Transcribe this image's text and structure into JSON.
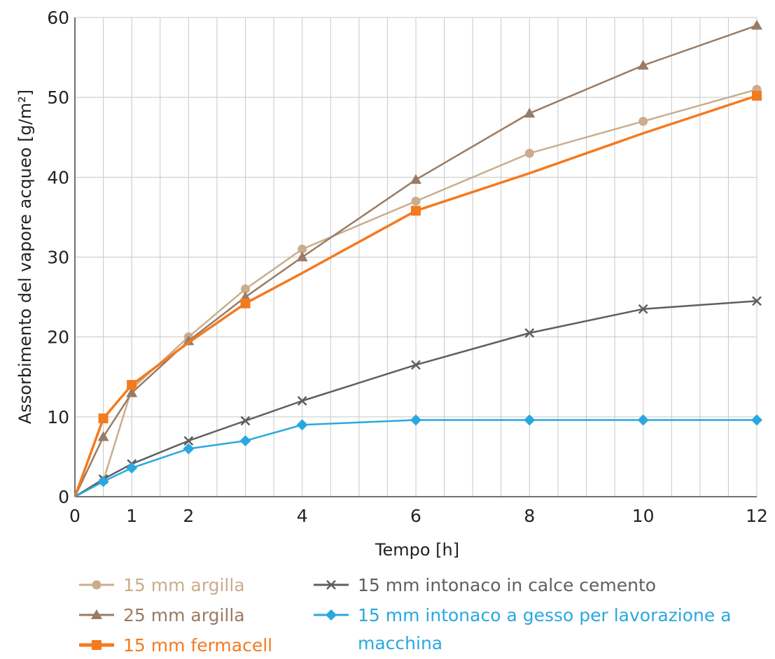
{
  "chart_data": {
    "type": "line",
    "title": "",
    "xlabel": "Tempo [h]",
    "ylabel": "Assorbimento del vapore acqueo [g/m²]",
    "xlim": [
      0,
      12
    ],
    "ylim": [
      0,
      60
    ],
    "xticks": [
      0,
      1,
      2,
      4,
      6,
      8,
      10,
      12
    ],
    "yticks": [
      0,
      10,
      20,
      30,
      40,
      50,
      60
    ],
    "grid": true,
    "legend_position": "bottom",
    "series": [
      {
        "name": "15 mm argilla",
        "color": "#c9ad8d",
        "marker": "circle",
        "points": [
          [
            0,
            0
          ],
          [
            0.5,
            2
          ],
          [
            1,
            13.5
          ],
          [
            2,
            20
          ],
          [
            3,
            26
          ],
          [
            4,
            31
          ],
          [
            6,
            37
          ],
          [
            8,
            43
          ],
          [
            10,
            47
          ],
          [
            12,
            51
          ]
        ]
      },
      {
        "name": "25 mm argilla",
        "color": "#9a7b63",
        "marker": "triangle",
        "points": [
          [
            0,
            0
          ],
          [
            0.5,
            7.5
          ],
          [
            1,
            13
          ],
          [
            2,
            19.5
          ],
          [
            3,
            25
          ],
          [
            4,
            30
          ],
          [
            6,
            39.7
          ],
          [
            8,
            48
          ],
          [
            10,
            54
          ],
          [
            12,
            59
          ]
        ]
      },
      {
        "name": "15 mm fermacell",
        "color": "#f47a20",
        "marker": "square",
        "points": [
          [
            0,
            0
          ],
          [
            0.5,
            9.8
          ],
          [
            1,
            14
          ],
          [
            2,
            19.3
          ],
          [
            3,
            24.2
          ],
          [
            4,
            28
          ],
          [
            6,
            35.8
          ],
          [
            8,
            40.5
          ],
          [
            10,
            45.5
          ],
          [
            12,
            50.2
          ]
        ]
      },
      {
        "name": "15 mm intonaco in calce cemento",
        "color": "#5f5f5f",
        "marker": "x",
        "points": [
          [
            0,
            0
          ],
          [
            0.5,
            2.2
          ],
          [
            1,
            4.1
          ],
          [
            2,
            7
          ],
          [
            3,
            9.5
          ],
          [
            4,
            12
          ],
          [
            6,
            16.5
          ],
          [
            8,
            20.5
          ],
          [
            10,
            23.5
          ],
          [
            12,
            24.5
          ]
        ]
      },
      {
        "name": "15 mm intonaco a gesso per lavorazione a macchina",
        "color": "#29a8e0",
        "marker": "diamond",
        "points": [
          [
            0,
            0
          ],
          [
            0.5,
            1.9
          ],
          [
            1,
            3.6
          ],
          [
            2,
            6
          ],
          [
            3,
            7
          ],
          [
            4,
            9
          ],
          [
            6,
            9.6
          ],
          [
            8,
            9.6
          ],
          [
            10,
            9.6
          ],
          [
            12,
            9.6
          ]
        ]
      }
    ],
    "markers_shown_at": {
      "15 mm argilla": [
        0.5,
        2,
        3,
        4,
        6,
        8,
        10,
        12
      ],
      "25 mm argilla": [
        0.5,
        1,
        2,
        3,
        4,
        6,
        8,
        10,
        12
      ],
      "15 mm fermacell": [
        0.5,
        1,
        3,
        6,
        12
      ],
      "15 mm intonaco in calce cemento": [
        0.5,
        1,
        2,
        3,
        4,
        6,
        8,
        10,
        12
      ],
      "15 mm intonaco a gesso per lavorazione a macchina": [
        0.5,
        1,
        2,
        3,
        4,
        6,
        8,
        10,
        12
      ]
    },
    "legend": {
      "entries": [
        {
          "series": 0,
          "label": "15 mm argilla"
        },
        {
          "series": 1,
          "label": "25 mm argilla"
        },
        {
          "series": 2,
          "label": "15 mm fermacell"
        },
        {
          "series": 3,
          "label": "15 mm intonaco in calce cemento"
        },
        {
          "series": 4,
          "label_lines": [
            "15 mm intonaco a gesso per lavorazione a",
            "macchina"
          ]
        }
      ]
    }
  }
}
